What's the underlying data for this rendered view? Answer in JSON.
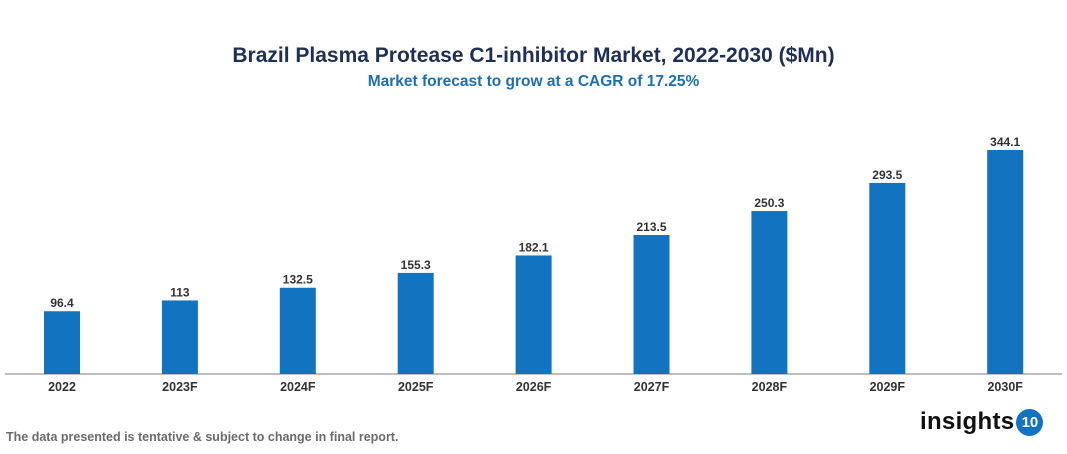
{
  "chart_data": {
    "type": "bar",
    "title": "Brazil Plasma Protease C1-inhibitor Market, 2022-2030 ($Mn)",
    "subtitle": "Market forecast to grow at a CAGR of 17.25%",
    "categories": [
      "2022",
      "2023F",
      "2024F",
      "2025F",
      "2026F",
      "2027F",
      "2028F",
      "2029F",
      "2030F"
    ],
    "values": [
      96.4,
      113,
      132.5,
      155.3,
      182.1,
      213.5,
      250.3,
      293.5,
      344.1
    ],
    "value_labels": [
      "96.4",
      "113",
      "132.5",
      "155.3",
      "182.1",
      "213.5",
      "250.3",
      "293.5",
      "344.1"
    ],
    "xlabel": "",
    "ylabel": "",
    "ylim": [
      0,
      344.1
    ],
    "grid": false,
    "bar_color": "#1273c0"
  },
  "footnote": "The data presented is tentative & subject to change in final report.",
  "logo": {
    "text": "insights",
    "badge": "10"
  }
}
